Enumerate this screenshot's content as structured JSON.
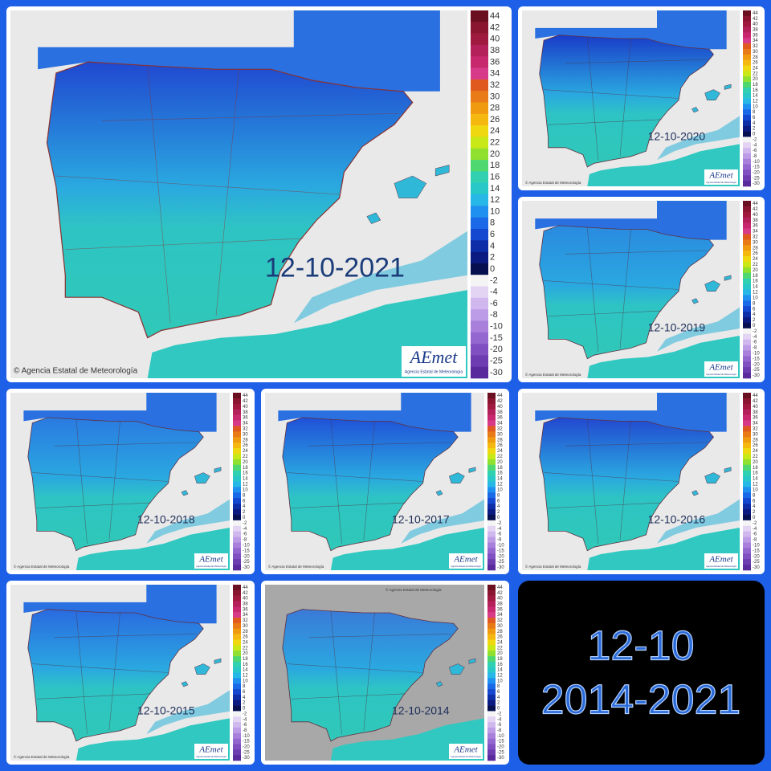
{
  "panels": [
    {
      "date": "12-10-2021"
    },
    {
      "date": "12-10-2020"
    },
    {
      "date": "12-10-2019"
    },
    {
      "date": "12-10-2018"
    },
    {
      "date": "12-10-2017"
    },
    {
      "date": "12-10-2016"
    },
    {
      "date": "12-10-2015"
    },
    {
      "date": "12-10-2014"
    }
  ],
  "credit": "© Agencia Estatal de Meteorología",
  "logo": "AEmet",
  "logo_sub": "Agencia Estatal de Meteorología",
  "legend": [
    44,
    42,
    40,
    38,
    36,
    34,
    32,
    30,
    28,
    26,
    24,
    22,
    20,
    18,
    16,
    14,
    12,
    10,
    8,
    6,
    4,
    2,
    0,
    -2,
    -4,
    -6,
    -8,
    -10,
    -15,
    -20,
    -25,
    -30
  ],
  "summary": {
    "line1": "12-10",
    "line2": "2014-2021"
  }
}
